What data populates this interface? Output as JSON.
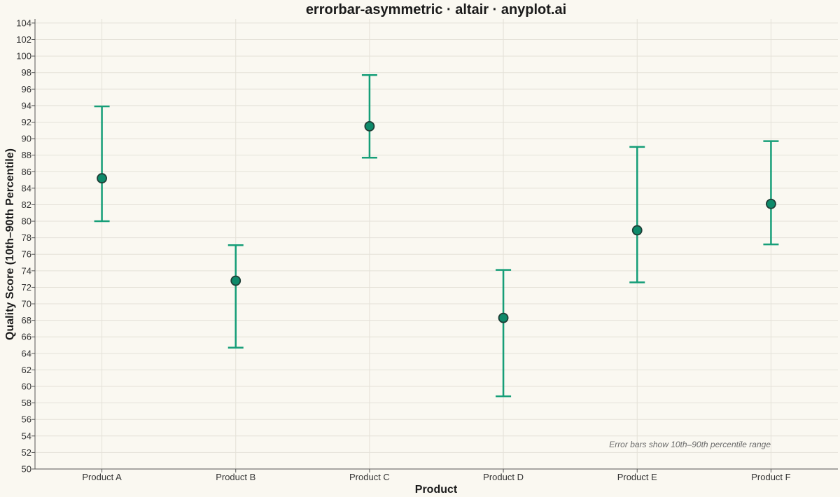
{
  "chart_data": {
    "type": "scatter",
    "title": "errorbar-asymmetric · altair · anyplot.ai",
    "xlabel": "Product",
    "ylabel": "Quality Score (10th–90th Percentile)",
    "ylim": [
      50,
      104.5
    ],
    "yticks": [
      50,
      52,
      54,
      56,
      58,
      60,
      62,
      64,
      66,
      68,
      70,
      72,
      74,
      76,
      78,
      80,
      82,
      84,
      86,
      88,
      90,
      92,
      94,
      96,
      98,
      100,
      102,
      104
    ],
    "grid": true,
    "categories": [
      "Product A",
      "Product B",
      "Product C",
      "Product D",
      "Product E",
      "Product F"
    ],
    "values": [
      85.2,
      72.8,
      91.5,
      68.3,
      78.9,
      82.1
    ],
    "lower": [
      80.0,
      64.7,
      87.7,
      58.8,
      72.6,
      77.2
    ],
    "upper": [
      93.9,
      77.1,
      97.7,
      74.1,
      89.0,
      89.7
    ],
    "annotation": "Error bars show 10th–90th percentile range",
    "colors": {
      "point_fill": "#0E8A6A",
      "point_stroke": "#1E3D35",
      "errorbar": "#169E78"
    }
  }
}
